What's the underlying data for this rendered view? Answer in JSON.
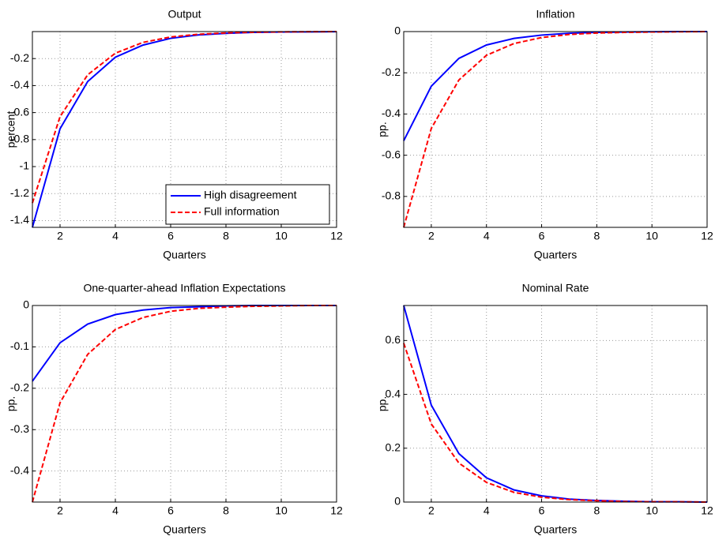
{
  "chart_data": [
    {
      "type": "line",
      "title": "Output",
      "xlabel": "Quarters",
      "ylabel": "percent",
      "x": [
        1,
        2,
        3,
        4,
        5,
        6,
        7,
        8,
        9,
        10,
        11,
        12
      ],
      "xlim": [
        1,
        12
      ],
      "xticks": [
        2,
        4,
        6,
        8,
        10,
        12
      ],
      "ylim": [
        -1.45,
        0
      ],
      "yticks": [
        -0.2,
        -0.4,
        -0.6,
        -0.8,
        -1,
        -1.2,
        -1.4
      ],
      "grid": true,
      "legend": "lower right",
      "series": [
        {
          "name": "High disagreement",
          "color": "#0000ff",
          "style": "solid",
          "values": [
            -1.45,
            -0.72,
            -0.37,
            -0.19,
            -0.1,
            -0.05,
            -0.025,
            -0.013,
            -0.006,
            -0.003,
            -0.002,
            -0.001
          ]
        },
        {
          "name": "Full information",
          "color": "#ff0000",
          "style": "dashed",
          "values": [
            -1.27,
            -0.63,
            -0.32,
            -0.16,
            -0.08,
            -0.04,
            -0.02,
            -0.01,
            -0.005,
            -0.002,
            -0.001,
            0
          ]
        }
      ]
    },
    {
      "type": "line",
      "title": "Inflation",
      "xlabel": "Quarters",
      "ylabel": "pp.",
      "x": [
        1,
        2,
        3,
        4,
        5,
        6,
        7,
        8,
        9,
        10,
        11,
        12
      ],
      "xlim": [
        1,
        12
      ],
      "xticks": [
        2,
        4,
        6,
        8,
        10,
        12
      ],
      "ylim": [
        -0.95,
        0
      ],
      "yticks": [
        0,
        -0.2,
        -0.4,
        -0.6,
        -0.8
      ],
      "grid": true,
      "series": [
        {
          "color": "#0000ff",
          "style": "solid",
          "values": [
            -0.53,
            -0.265,
            -0.13,
            -0.065,
            -0.033,
            -0.017,
            -0.008,
            -0.004,
            -0.002,
            -0.001,
            0,
            0
          ]
        },
        {
          "color": "#ff0000",
          "style": "dashed",
          "values": [
            -0.95,
            -0.47,
            -0.235,
            -0.115,
            -0.058,
            -0.029,
            -0.014,
            -0.007,
            -0.004,
            -0.002,
            -0.001,
            0
          ]
        }
      ]
    },
    {
      "type": "line",
      "title": "One-quarter-ahead Inflation Expectations",
      "xlabel": "Quarters",
      "ylabel": "pp.",
      "x": [
        1,
        2,
        3,
        4,
        5,
        6,
        7,
        8,
        9,
        10,
        11,
        12
      ],
      "xlim": [
        1,
        12
      ],
      "xticks": [
        2,
        4,
        6,
        8,
        10,
        12
      ],
      "ylim": [
        -0.475,
        0
      ],
      "yticks": [
        0,
        -0.1,
        -0.2,
        -0.3,
        -0.4
      ],
      "grid": true,
      "series": [
        {
          "color": "#0000ff",
          "style": "solid",
          "values": [
            -0.183,
            -0.09,
            -0.045,
            -0.022,
            -0.011,
            -0.005,
            -0.003,
            -0.001,
            0,
            0,
            0,
            0
          ]
        },
        {
          "color": "#ff0000",
          "style": "dashed",
          "values": [
            -0.475,
            -0.235,
            -0.118,
            -0.058,
            -0.029,
            -0.014,
            -0.007,
            -0.004,
            -0.002,
            -0.001,
            0,
            0
          ]
        }
      ]
    },
    {
      "type": "line",
      "title": "Nominal Rate",
      "xlabel": "Quarters",
      "ylabel": "pp.",
      "x": [
        1,
        2,
        3,
        4,
        5,
        6,
        7,
        8,
        9,
        10,
        11,
        12
      ],
      "xlim": [
        1,
        12
      ],
      "xticks": [
        2,
        4,
        6,
        8,
        10,
        12
      ],
      "ylim": [
        0,
        0.73
      ],
      "yticks": [
        0,
        0.2,
        0.4,
        0.6
      ],
      "grid": true,
      "series": [
        {
          "color": "#0000ff",
          "style": "solid",
          "values": [
            0.73,
            0.36,
            0.18,
            0.09,
            0.045,
            0.023,
            0.011,
            0.006,
            0.003,
            0.001,
            0.001,
            0
          ]
        },
        {
          "color": "#ff0000",
          "style": "dashed",
          "values": [
            0.59,
            0.29,
            0.145,
            0.073,
            0.036,
            0.018,
            0.009,
            0.005,
            0.002,
            0.001,
            0.001,
            0
          ]
        }
      ]
    }
  ]
}
